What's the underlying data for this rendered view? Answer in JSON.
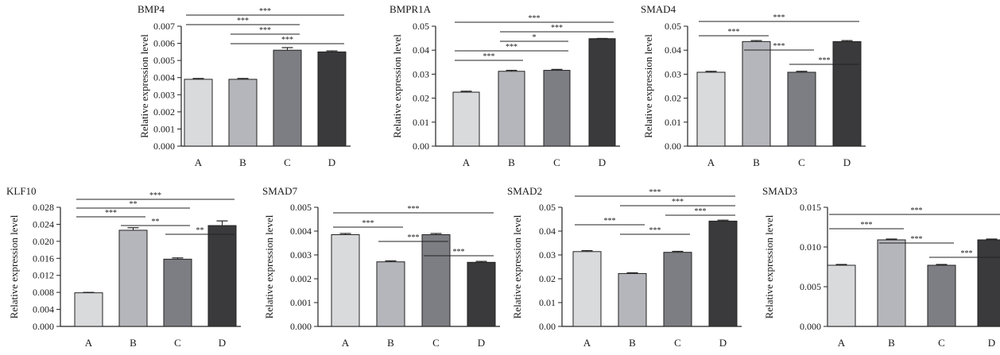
{
  "colors": {
    "A": "#d9dadc",
    "B": "#b5b6bb",
    "C": "#7d7e83",
    "D": "#3a3a3c",
    "stroke": "#222222"
  },
  "chart_data": [
    {
      "type": "bar",
      "title": "BMP4",
      "ylabel": "Relative expression level",
      "categories": [
        "A",
        "B",
        "C",
        "D"
      ],
      "values": [
        0.0039,
        0.0039,
        0.0056,
        0.0055
      ],
      "errors": [
        5e-05,
        5e-05,
        0.00015,
        6e-05
      ],
      "ylim": [
        0,
        0.007
      ],
      "ticks": [
        "0.000",
        "0.001",
        "0.002",
        "0.003",
        "0.004",
        "0.005",
        "0.006",
        "0.007"
      ],
      "significance": [
        {
          "from": 0,
          "to": 3,
          "label": "***"
        },
        {
          "from": 0,
          "to": 2,
          "label": "***"
        },
        {
          "from": 1,
          "to": 2,
          "label": "***"
        },
        {
          "from": 1,
          "to": 3,
          "label": "***"
        }
      ]
    },
    {
      "type": "bar",
      "title": "BMPR1A",
      "ylabel": "Relative expression level",
      "categories": [
        "A",
        "B",
        "C",
        "D"
      ],
      "values": [
        0.0225,
        0.0312,
        0.0316,
        0.0448
      ],
      "errors": [
        0.0004,
        0.0004,
        0.0004,
        0.0001
      ],
      "ylim": [
        0,
        0.05
      ],
      "ticks": [
        "0.00",
        "0.01",
        "0.02",
        "0.03",
        "0.04",
        "0.05"
      ],
      "significance": [
        {
          "from": 0,
          "to": 3,
          "label": "***"
        },
        {
          "from": 1,
          "to": 3,
          "label": "***"
        },
        {
          "from": 1,
          "to": 2,
          "label": "*"
        },
        {
          "from": 0,
          "to": 2,
          "label": "***"
        },
        {
          "from": 0,
          "to": 1,
          "label": "***"
        }
      ]
    },
    {
      "type": "bar",
      "title": "SMAD4",
      "ylabel": "Relative expression level",
      "categories": [
        "A",
        "B",
        "C",
        "D"
      ],
      "values": [
        0.0308,
        0.0436,
        0.0308,
        0.0436
      ],
      "errors": [
        0.0004,
        0.0004,
        0.0004,
        0.0004
      ],
      "ylim": [
        0,
        0.05
      ],
      "ticks": [
        "0.00",
        "0.01",
        "0.02",
        "0.03",
        "0.04",
        "0.05"
      ],
      "significance": [
        {
          "from": 0,
          "to": 3,
          "label": "***"
        },
        {
          "from": 0,
          "to": 1,
          "label": "***"
        },
        {
          "from": 1,
          "to": 2,
          "label": "***"
        },
        {
          "from": 2,
          "to": 3,
          "label": "***"
        }
      ]
    },
    {
      "type": "bar",
      "title": "KLF10",
      "ylabel": "Relative expression level",
      "categories": [
        "A",
        "B",
        "C",
        "D"
      ],
      "values": [
        0.0079,
        0.0226,
        0.0158,
        0.0237
      ],
      "errors": [
        0.0001,
        0.0006,
        0.0003,
        0.0011
      ],
      "ylim": [
        0,
        0.028
      ],
      "ticks": [
        "0.000",
        "0.004",
        "0.008",
        "0.012",
        "0.016",
        "0.020",
        "0.024",
        "0.028"
      ],
      "significance": [
        {
          "from": 0,
          "to": 3,
          "label": "***"
        },
        {
          "from": 0,
          "to": 2,
          "label": "**"
        },
        {
          "from": 0,
          "to": 1,
          "label": "***"
        },
        {
          "from": 1,
          "to": 2,
          "label": "**"
        },
        {
          "from": 2,
          "to": 3,
          "label": "**"
        }
      ]
    },
    {
      "type": "bar",
      "title": "SMAD7",
      "ylabel": "Relative expression level",
      "categories": [
        "A",
        "B",
        "C",
        "D"
      ],
      "values": [
        0.00385,
        0.00271,
        0.00385,
        0.00269
      ],
      "errors": [
        5e-05,
        4e-05,
        5e-05,
        4e-05
      ],
      "ylim": [
        0,
        0.005
      ],
      "ticks": [
        "0.000",
        "0.001",
        "0.002",
        "0.003",
        "0.004",
        "0.005"
      ],
      "significance": [
        {
          "from": 0,
          "to": 3,
          "label": "***"
        },
        {
          "from": 0,
          "to": 1,
          "label": "***"
        },
        {
          "from": 1,
          "to": 2,
          "label": "***"
        },
        {
          "from": 2,
          "to": 3,
          "label": "***"
        }
      ]
    },
    {
      "type": "bar",
      "title": "SMAD2",
      "ylabel": "Relative expression level",
      "categories": [
        "A",
        "B",
        "C",
        "D"
      ],
      "values": [
        0.0314,
        0.0222,
        0.0311,
        0.0442
      ],
      "errors": [
        0.0004,
        0.0003,
        0.0004,
        0.0004
      ],
      "ylim": [
        0,
        0.05
      ],
      "ticks": [
        "0.00",
        "0.01",
        "0.02",
        "0.03",
        "0.04",
        "0.05"
      ],
      "significance": [
        {
          "from": 0,
          "to": 3,
          "label": "***"
        },
        {
          "from": 1,
          "to": 3,
          "label": "***"
        },
        {
          "from": 2,
          "to": 3,
          "label": "***"
        },
        {
          "from": 0,
          "to": 1,
          "label": "***"
        },
        {
          "from": 1,
          "to": 2,
          "label": "***"
        }
      ]
    },
    {
      "type": "bar",
      "title": "SMAD3",
      "ylabel": "Relative expression level",
      "categories": [
        "A",
        "B",
        "C",
        "D"
      ],
      "values": [
        0.0077,
        0.0109,
        0.0077,
        0.0109
      ],
      "errors": [
        0.0001,
        0.0001,
        0.0001,
        0.0001
      ],
      "ylim": [
        0,
        0.015
      ],
      "ticks": [
        "0.000",
        "0.005",
        "0.010",
        "0.015"
      ],
      "significance": [
        {
          "from": 0,
          "to": 3,
          "label": "***"
        },
        {
          "from": 0,
          "to": 1,
          "label": "***"
        },
        {
          "from": 1,
          "to": 2,
          "label": "***"
        },
        {
          "from": 2,
          "to": 3,
          "label": "***"
        }
      ]
    }
  ]
}
